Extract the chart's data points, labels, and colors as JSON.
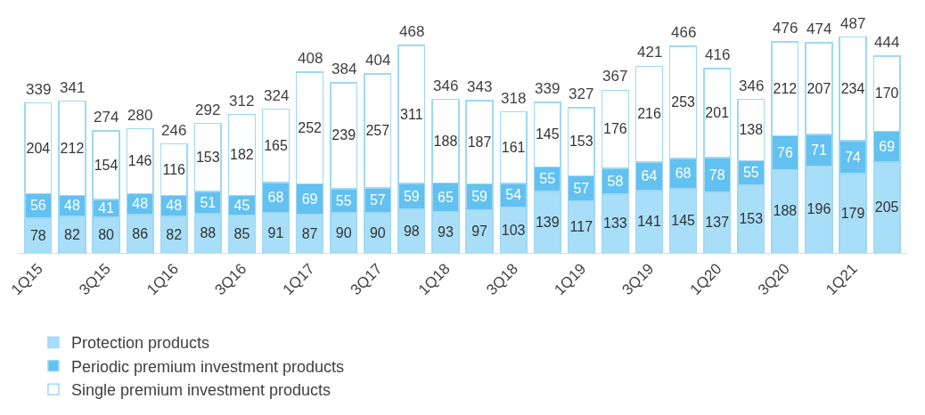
{
  "chart_data": {
    "type": "bar",
    "stacked": true,
    "data_labels": true,
    "legend": "bottom",
    "categories": [
      "1Q15",
      null,
      "3Q15",
      null,
      "1Q16",
      null,
      "3Q16",
      null,
      "1Q17",
      null,
      "3Q17",
      null,
      "1Q18",
      null,
      "3Q18",
      null,
      "1Q19",
      null,
      "3Q19",
      null,
      "1Q20",
      null,
      "3Q20",
      null,
      "1Q21",
      null
    ],
    "series": [
      {
        "name": "Protection products",
        "color": "#a8def8",
        "values": [
          78,
          82,
          80,
          86,
          82,
          88,
          85,
          91,
          87,
          90,
          90,
          98,
          93,
          97,
          103,
          139,
          117,
          133,
          141,
          145,
          137,
          153,
          188,
          196,
          179,
          205
        ]
      },
      {
        "name": "Periodic premium investment products",
        "color": "#62c1f0",
        "values": [
          56,
          48,
          41,
          48,
          48,
          51,
          45,
          68,
          69,
          55,
          57,
          59,
          65,
          59,
          54,
          55,
          57,
          58,
          64,
          68,
          78,
          55,
          76,
          71,
          74,
          69
        ]
      },
      {
        "name": "Single premium investment products",
        "color": "#ffffff",
        "values": [
          204,
          212,
          154,
          146,
          116,
          153,
          182,
          165,
          252,
          239,
          257,
          311,
          188,
          187,
          161,
          145,
          153,
          176,
          216,
          253,
          201,
          138,
          212,
          207,
          234,
          170
        ]
      }
    ],
    "totals": [
      "339",
      "341",
      "274",
      "280",
      "246",
      "292",
      "312",
      "324",
      "408",
      "384",
      "404",
      "468",
      "346",
      "343",
      "318",
      "339",
      "327",
      "367",
      "421",
      "466",
      "416",
      "346",
      "476",
      "474",
      "487",
      "444"
    ]
  }
}
